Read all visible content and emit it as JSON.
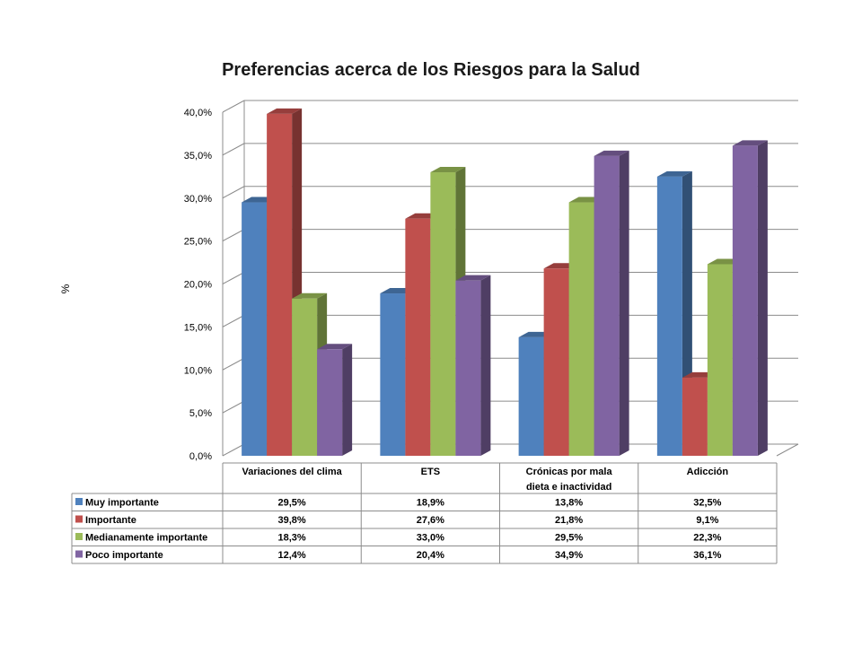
{
  "chart_data": {
    "type": "bar",
    "title": "Preferencias acerca de los Riesgos para la Salud",
    "ylabel": "%",
    "ylim": [
      0,
      40
    ],
    "yticks": [
      "0,0%",
      "5,0%",
      "10,0%",
      "15,0%",
      "20,0%",
      "25,0%",
      "30,0%",
      "35,0%",
      "40,0%"
    ],
    "categories": [
      "Variaciones del clima",
      "ETS",
      "Crónicas por mala dieta e inactividad",
      "Adicción"
    ],
    "category_lines": [
      [
        "Variaciones del clima"
      ],
      [
        "ETS"
      ],
      [
        "Crónicas por mala",
        "dieta e inactividad"
      ],
      [
        "Adicción"
      ]
    ],
    "grid": true,
    "legend": "data-table",
    "series": [
      {
        "name": "Muy importante",
        "color": "#4f81bd",
        "values": [
          29.5,
          18.9,
          13.8,
          32.5
        ],
        "labels": [
          "29,5%",
          "18,9%",
          "13,8%",
          "32,5%"
        ]
      },
      {
        "name": "Importante",
        "color": "#c0504d",
        "values": [
          39.8,
          27.6,
          21.8,
          9.1
        ],
        "labels": [
          "39,8%",
          "27,6%",
          "21,8%",
          "9,1%"
        ]
      },
      {
        "name": "Medianamente importante",
        "color": "#9bbb59",
        "values": [
          18.3,
          33.0,
          29.5,
          22.3
        ],
        "labels": [
          "18,3%",
          "33,0%",
          "29,5%",
          "22,3%"
        ]
      },
      {
        "name": "Poco importante",
        "color": "#8064a2",
        "values": [
          12.4,
          20.4,
          34.9,
          36.1
        ],
        "labels": [
          "12,4%",
          "20,4%",
          "34,9%",
          "36,1%"
        ]
      }
    ]
  }
}
